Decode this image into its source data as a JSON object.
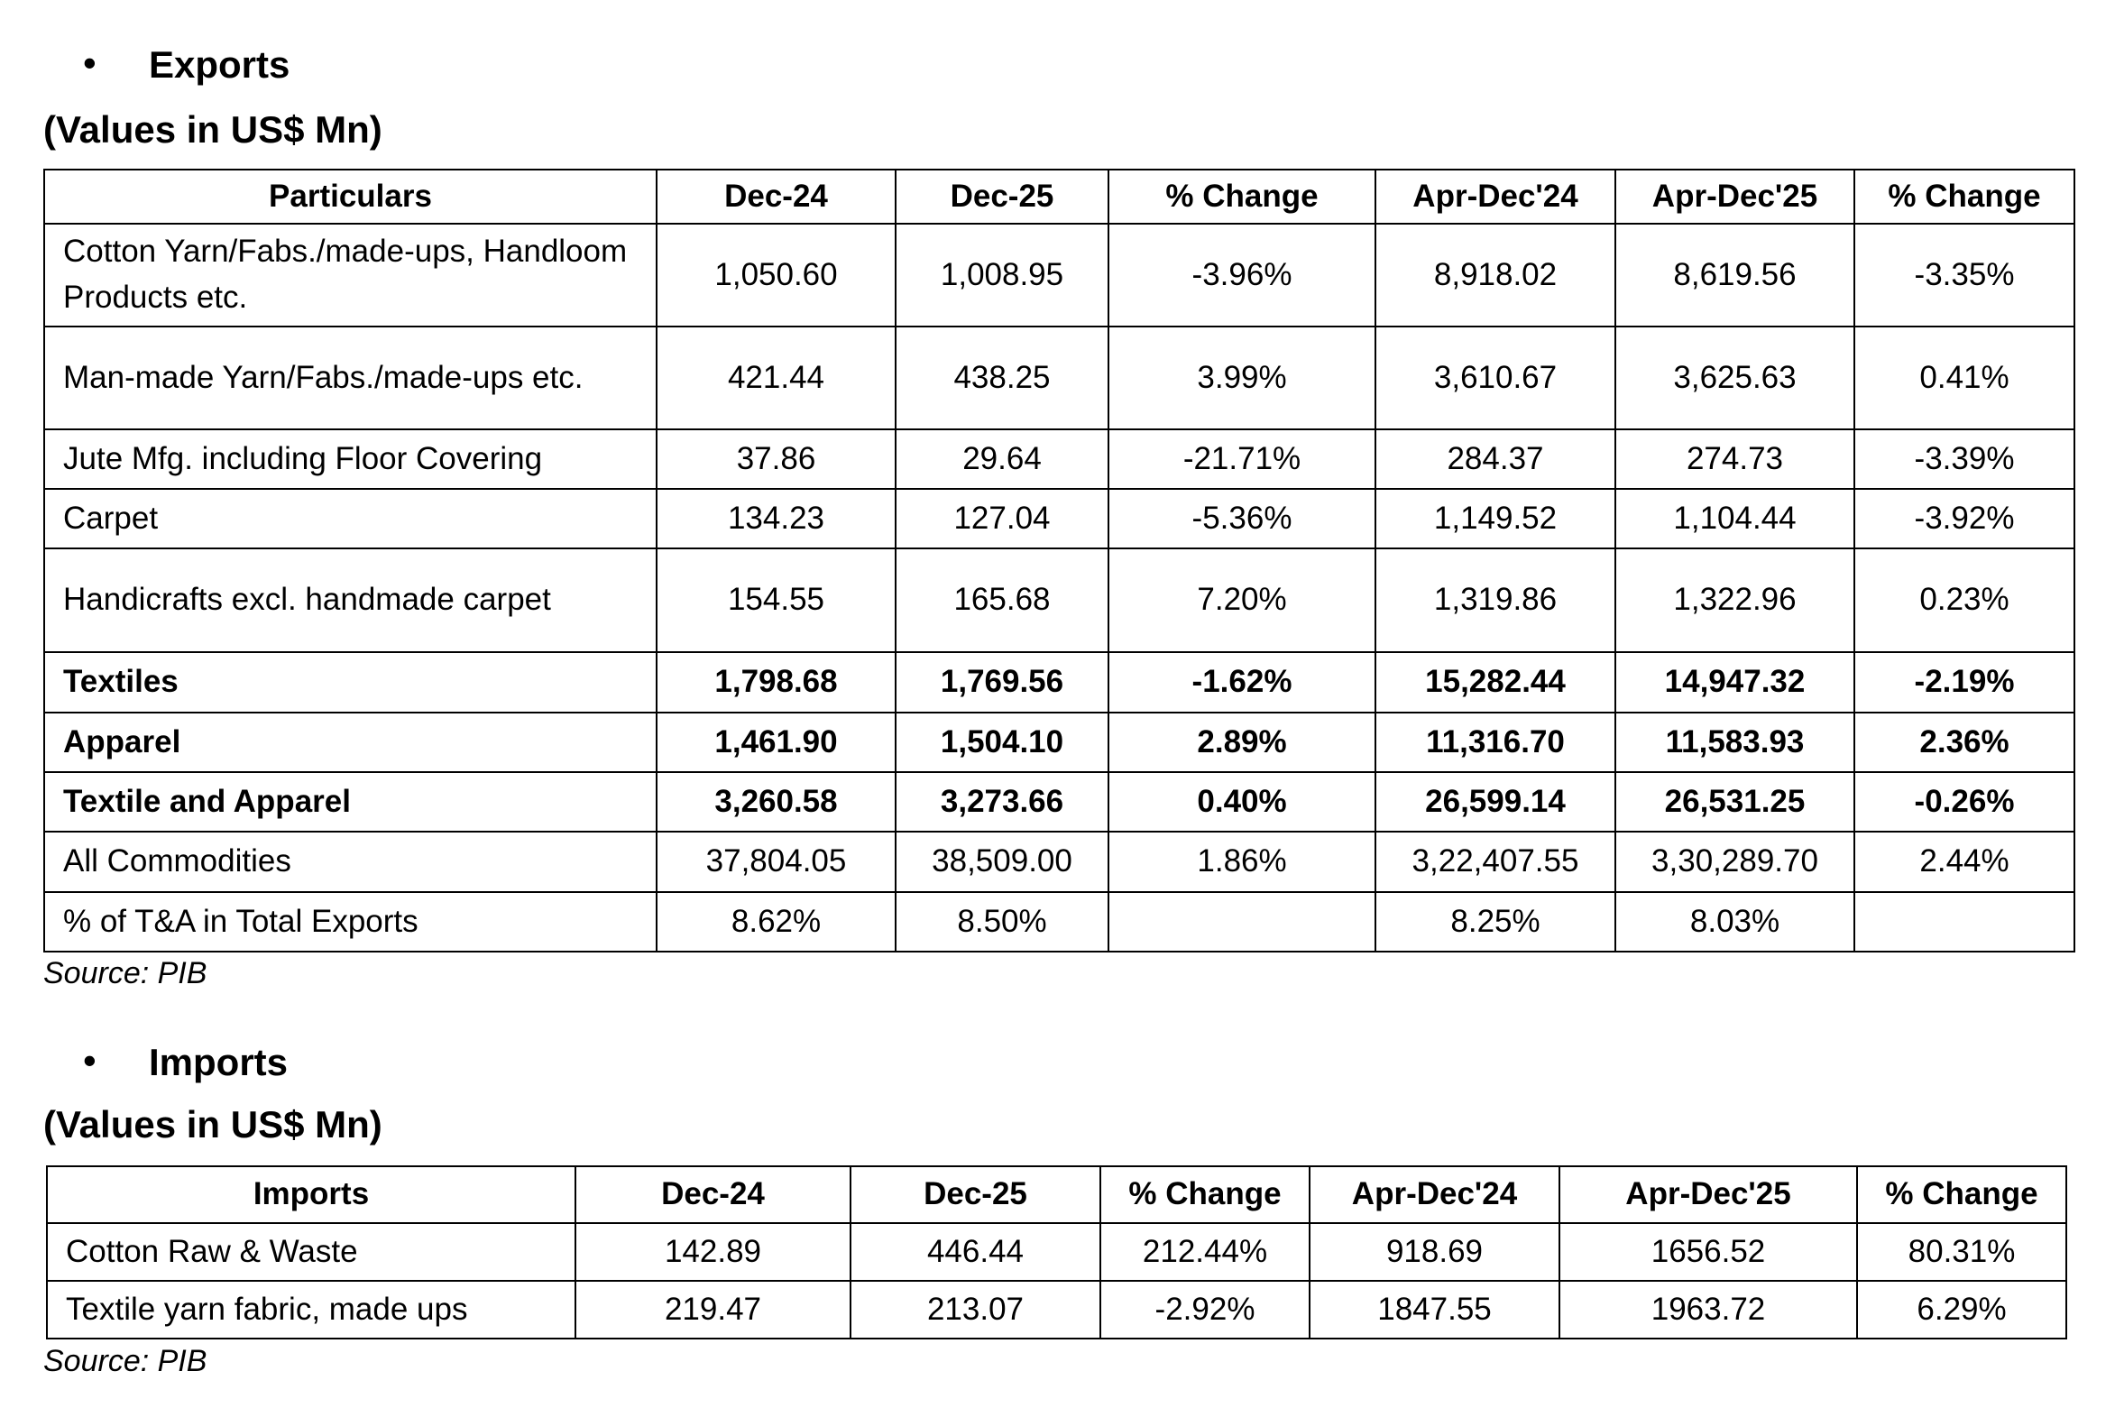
{
  "exports": {
    "heading": "Exports",
    "units": "(Values in US$ Mn)",
    "table": {
      "header": [
        "Particulars",
        "Dec-24",
        "Dec-25",
        "% Change",
        "Apr-Dec'24",
        "Apr-Dec'25",
        "% Change"
      ],
      "rows": [
        [
          "Cotton Yarn/Fabs./made-ups, Handloom Products etc.",
          "1,050.60",
          "1,008.95",
          "-3.96%",
          "8,918.02",
          "8,619.56",
          "-3.35%"
        ],
        [
          "Man-made Yarn/Fabs./made-ups etc.",
          "421.44",
          "438.25",
          "3.99%",
          "3,610.67",
          "3,625.63",
          "0.41%"
        ],
        [
          "Jute Mfg. including Floor Covering",
          "37.86",
          "29.64",
          "-21.71%",
          "284.37",
          "274.73",
          "-3.39%"
        ],
        [
          "Carpet",
          "134.23",
          "127.04",
          "-5.36%",
          "1,149.52",
          "1,104.44",
          "-3.92%"
        ],
        [
          "Handicrafts excl. handmade carpet",
          "154.55",
          "165.68",
          "7.20%",
          "1,319.86",
          "1,322.96",
          "0.23%"
        ],
        [
          "Textiles",
          "1,798.68",
          "1,769.56",
          "-1.62%",
          "15,282.44",
          "14,947.32",
          "-2.19%"
        ],
        [
          "Apparel",
          "1,461.90",
          "1,504.10",
          "2.89%",
          "11,316.70",
          "11,583.93",
          "2.36%"
        ],
        [
          "Textile and Apparel",
          "3,260.58",
          "3,273.66",
          "0.40%",
          "26,599.14",
          "26,531.25",
          "-0.26%"
        ],
        [
          "All Commodities",
          "37,804.05",
          "38,509.00",
          "1.86%",
          "3,22,407.55",
          "3,30,289.70",
          "2.44%"
        ],
        [
          "% of T&A in Total Exports",
          "8.62%",
          "8.50%",
          null,
          "8.25%",
          "8.03%",
          null
        ]
      ]
    },
    "source": "Source: PIB"
  },
  "imports": {
    "heading": "Imports",
    "units": "(Values in US$ Mn)",
    "table": {
      "header": [
        "Imports",
        "Dec-24",
        "Dec-25",
        "% Change",
        "Apr-Dec'24",
        "Apr-Dec'25",
        "% Change"
      ],
      "rows": [
        [
          "Cotton Raw & Waste",
          "142.89",
          "446.44",
          "212.44%",
          "918.69",
          "1656.52",
          "80.31%"
        ],
        [
          "Textile yarn fabric, made ups",
          "219.47",
          "213.07",
          "-2.92%",
          "1847.55",
          "1963.72",
          "6.29%"
        ]
      ]
    },
    "source": "Source: PIB"
  }
}
